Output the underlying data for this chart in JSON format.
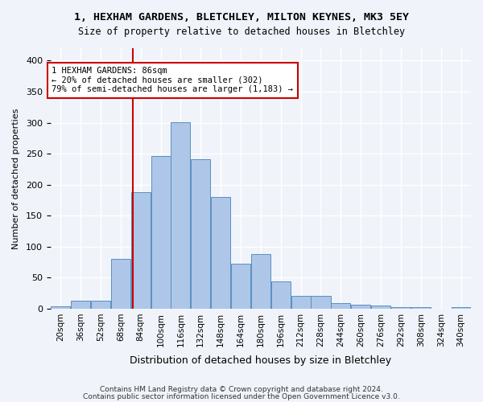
{
  "title": "1, HEXHAM GARDENS, BLETCHLEY, MILTON KEYNES, MK3 5EY",
  "subtitle": "Size of property relative to detached houses in Bletchley",
  "xlabel": "Distribution of detached houses by size in Bletchley",
  "ylabel": "Number of detached properties",
  "bins": [
    "20sqm",
    "36sqm",
    "52sqm",
    "68sqm",
    "84sqm",
    "100sqm",
    "116sqm",
    "132sqm",
    "148sqm",
    "164sqm",
    "180sqm",
    "196sqm",
    "212sqm",
    "228sqm",
    "244sqm",
    "260sqm",
    "276sqm",
    "292sqm",
    "308sqm",
    "324sqm",
    "340sqm"
  ],
  "bin_edges": [
    20,
    36,
    52,
    68,
    84,
    100,
    116,
    132,
    148,
    164,
    180,
    196,
    212,
    228,
    244,
    260,
    276,
    292,
    308,
    324,
    340
  ],
  "values": [
    4,
    13,
    13,
    80,
    188,
    246,
    301,
    241,
    180,
    73,
    88,
    44,
    20,
    20,
    9,
    6,
    5,
    3,
    2,
    0,
    3
  ],
  "bar_color": "#aec6e8",
  "bar_edge_color": "#5a8fc2",
  "property_sqm": 86,
  "vline_color": "#cc0000",
  "annotation_text": "1 HEXHAM GARDENS: 86sqm\n← 20% of detached houses are smaller (302)\n79% of semi-detached houses are larger (1,183) →",
  "annotation_box_color": "#ffffff",
  "annotation_box_edge": "#cc0000",
  "bg_color": "#f0f4fa",
  "grid_color": "#ffffff",
  "ylim": [
    0,
    420
  ],
  "yticks": [
    0,
    50,
    100,
    150,
    200,
    250,
    300,
    350,
    400
  ],
  "footer1": "Contains HM Land Registry data © Crown copyright and database right 2024.",
  "footer2": "Contains public sector information licensed under the Open Government Licence v3.0."
}
